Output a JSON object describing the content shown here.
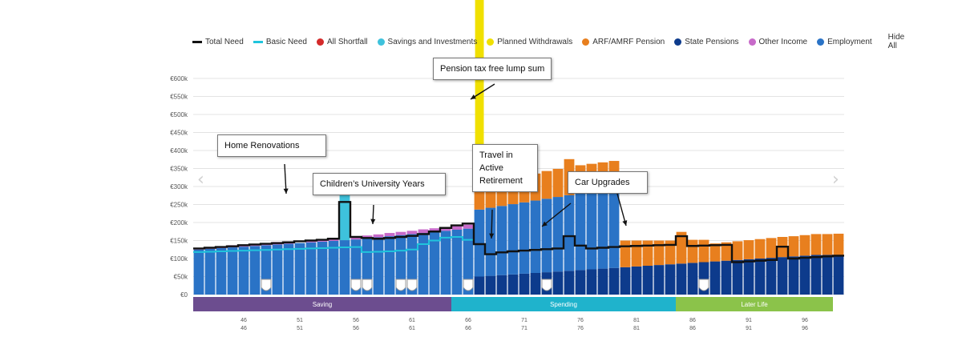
{
  "legend": {
    "items": [
      {
        "label": "Total Need",
        "kind": "line",
        "color": "#111111"
      },
      {
        "label": "Basic Need",
        "kind": "line",
        "color": "#20c4dc"
      },
      {
        "label": "All Shortfall",
        "kind": "dot",
        "color": "#d42a2a"
      },
      {
        "label": "Savings and Investments",
        "kind": "dot",
        "color": "#3ec2dc"
      },
      {
        "label": "Planned Withdrawals",
        "kind": "dot",
        "color": "#f0e000"
      },
      {
        "label": "ARF/AMRF Pension",
        "kind": "dot",
        "color": "#e87f1e"
      },
      {
        "label": "State Pensions",
        "kind": "dot",
        "color": "#0d3b8c"
      },
      {
        "label": "Other Income",
        "kind": "dot",
        "color": "#c76ac9"
      },
      {
        "label": "Employment",
        "kind": "dot",
        "color": "#2a73c6"
      }
    ],
    "hide_all": "Hide All"
  },
  "annotations": {
    "pension_lump_sum": "Pension tax free lump sum",
    "home_renovations": "Home Renovations",
    "childrens_university": "Children’s University Years",
    "travel_line1": "Travel in",
    "travel_line2": "Active",
    "travel_line3": "Retirement",
    "car_upgrades": "Car Upgrades"
  },
  "nav": {
    "prev_icon": "chevron-left-icon",
    "next_icon": "chevron-right-icon"
  },
  "chart_data": {
    "type": "bar",
    "title": "",
    "xlabel": "",
    "ylabel": "",
    "ylim": [
      0,
      600000
    ],
    "y_ticks": [
      "€0",
      "€50k",
      "€100k",
      "€150k",
      "€200k",
      "€250k",
      "€300k",
      "€350k",
      "€400k",
      "€450k",
      "€500k",
      "€550k",
      "€600k"
    ],
    "x_range": [
      42,
      99
    ],
    "x_tick_labels": [
      "46",
      "51",
      "56",
      "61",
      "66",
      "71",
      "76",
      "81",
      "86",
      "91",
      "96"
    ],
    "x_tick_ages": [
      46,
      51,
      56,
      61,
      66,
      71,
      76,
      81,
      86,
      91,
      96
    ],
    "x": [
      42,
      43,
      44,
      45,
      46,
      47,
      48,
      49,
      50,
      51,
      52,
      53,
      54,
      55,
      56,
      57,
      58,
      59,
      60,
      61,
      62,
      63,
      64,
      65,
      66,
      67,
      68,
      69,
      70,
      71,
      72,
      73,
      74,
      75,
      76,
      77,
      78,
      79,
      80,
      81,
      82,
      83,
      84,
      85,
      86,
      87,
      88,
      89,
      90,
      91,
      92,
      93,
      94,
      95,
      96,
      97,
      98,
      99
    ],
    "series": [
      {
        "name": "Employment",
        "color": "#2a73c6",
        "values": [
          125000,
          127000,
          129000,
          131000,
          133000,
          135000,
          137000,
          139000,
          141000,
          143000,
          145000,
          147000,
          149000,
          151000,
          153000,
          156000,
          159000,
          162000,
          165000,
          168000,
          171000,
          174000,
          177000,
          180000,
          183000,
          186000,
          189000,
          192000,
          195000,
          198000,
          201000,
          204000,
          207000,
          210000,
          213000,
          216000,
          219000,
          222000,
          0,
          0,
          0,
          0,
          0,
          0,
          0,
          0,
          0,
          0,
          0,
          0,
          0,
          0,
          0,
          0,
          0,
          0,
          0,
          0
        ]
      },
      {
        "name": "State Pensions",
        "color": "#0d3b8c",
        "values": [
          0,
          0,
          0,
          0,
          0,
          0,
          0,
          0,
          0,
          0,
          0,
          0,
          0,
          0,
          0,
          0,
          0,
          0,
          0,
          0,
          0,
          0,
          0,
          0,
          0,
          50000,
          52000,
          54000,
          56000,
          58000,
          60000,
          62000,
          64000,
          66000,
          68000,
          70000,
          72000,
          74000,
          76000,
          78000,
          80000,
          82000,
          84000,
          86000,
          88000,
          90000,
          92000,
          94000,
          96000,
          98000,
          100000,
          102000,
          104000,
          106000,
          108000,
          110000,
          110000,
          110000
        ]
      },
      {
        "name": "ARF/AMRF Pension",
        "color": "#e87f1e",
        "values": [
          0,
          0,
          0,
          0,
          0,
          0,
          0,
          0,
          0,
          0,
          0,
          0,
          0,
          0,
          0,
          0,
          0,
          0,
          0,
          0,
          0,
          0,
          0,
          0,
          0,
          60000,
          63000,
          66000,
          70000,
          73000,
          75000,
          77000,
          78000,
          100000,
          78000,
          77000,
          76000,
          75000,
          74000,
          72000,
          70000,
          68000,
          66000,
          88000,
          64000,
          62000,
          50000,
          51000,
          52000,
          53000,
          54000,
          55000,
          56000,
          56000,
          57000,
          58000,
          58000,
          59000
        ]
      },
      {
        "name": "Savings and Investments",
        "color": "#3ec2dc",
        "values": [
          0,
          0,
          0,
          0,
          0,
          0,
          0,
          0,
          0,
          0,
          0,
          0,
          0,
          125000,
          0,
          0,
          0,
          0,
          0,
          0,
          0,
          0,
          0,
          0,
          0,
          0,
          0,
          0,
          0,
          0,
          0,
          0,
          0,
          0,
          0,
          0,
          0,
          0,
          0,
          0,
          0,
          0,
          0,
          0,
          0,
          0,
          0,
          0,
          0,
          0,
          0,
          0,
          0,
          0,
          0,
          0,
          0,
          0
        ]
      },
      {
        "name": "Planned Withdrawals",
        "color": "#f0e000",
        "values": [
          0,
          0,
          0,
          0,
          0,
          0,
          0,
          0,
          0,
          0,
          0,
          0,
          0,
          0,
          0,
          0,
          0,
          0,
          0,
          0,
          0,
          0,
          0,
          0,
          0,
          590000,
          0,
          0,
          0,
          0,
          0,
          0,
          0,
          0,
          0,
          0,
          0,
          0,
          0,
          0,
          0,
          0,
          0,
          0,
          0,
          0,
          0,
          0,
          0,
          0,
          0,
          0,
          0,
          0,
          0,
          0,
          0,
          0
        ]
      },
      {
        "name": "Other Income",
        "color": "#c76ac9",
        "values": [
          5000,
          5000,
          5000,
          6000,
          6000,
          6000,
          6000,
          7000,
          7000,
          0,
          7000,
          7000,
          8000,
          0,
          8000,
          8000,
          8000,
          9000,
          9000,
          9000,
          10000,
          10000,
          10000,
          11000,
          11000,
          0,
          0,
          0,
          0,
          0,
          0,
          0,
          0,
          0,
          0,
          0,
          0,
          0,
          0,
          0,
          0,
          0,
          0,
          0,
          0,
          0,
          0,
          0,
          0,
          0,
          0,
          0,
          0,
          0,
          0,
          0,
          0,
          0
        ]
      },
      {
        "name": "Total Need",
        "color": "#111111",
        "values": [
          128000,
          130000,
          132000,
          134000,
          137000,
          139000,
          141000,
          143000,
          145000,
          148000,
          150000,
          152000,
          155000,
          257000,
          160000,
          157000,
          155000,
          157000,
          160000,
          163000,
          168000,
          175000,
          185000,
          192000,
          197000,
          140000,
          112000,
          117000,
          120000,
          122000,
          124000,
          126000,
          128000,
          162000,
          136000,
          128000,
          130000,
          132000,
          134000,
          135000,
          136000,
          137000,
          138000,
          162000,
          135000,
          136000,
          137000,
          138000,
          90000,
          92000,
          94000,
          96000,
          133000,
          100000,
          102000,
          104000,
          106000,
          108000
        ]
      },
      {
        "name": "Basic Need",
        "color": "#20c4dc",
        "values": [
          118000,
          119000,
          120000,
          121000,
          122000,
          123000,
          124000,
          125000,
          126000,
          127000,
          128000,
          129000,
          130000,
          131000,
          132000,
          118000,
          119000,
          120000,
          122000,
          125000,
          140000,
          150000,
          158000,
          160000,
          152000,
          0,
          0,
          0,
          0,
          0,
          0,
          0,
          0,
          0,
          0,
          0,
          0,
          0,
          0,
          0,
          0,
          0,
          0,
          0,
          0,
          0,
          0,
          0,
          0,
          0,
          0,
          0,
          0,
          0,
          0,
          0,
          0,
          0
        ]
      }
    ],
    "event_markers_age": [
      48,
      56,
      57,
      60,
      61,
      66,
      73,
      87
    ],
    "phases": [
      {
        "label": "Saving",
        "from": 42,
        "to": 65,
        "color": "#6c4d8f"
      },
      {
        "label": "Spending",
        "from": 65,
        "to": 85,
        "color": "#1fb3cc"
      },
      {
        "label": "Later Life",
        "from": 85,
        "to": 99,
        "color": "#8bc34a"
      }
    ],
    "grid": true,
    "legend_position": "top"
  }
}
